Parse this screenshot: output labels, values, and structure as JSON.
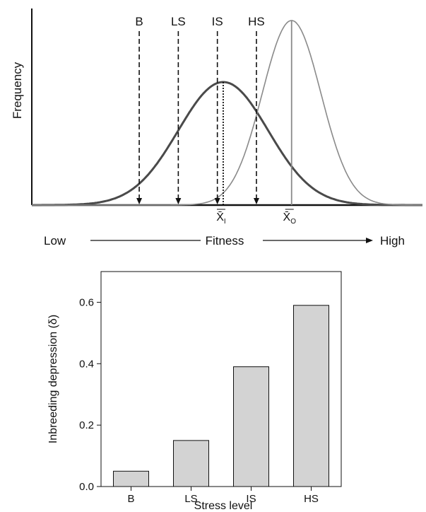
{
  "chart_data": [
    {
      "type": "line",
      "ylabel": "Frequency",
      "xlabel": "Fitness",
      "xlabel_low": "Low",
      "xlabel_high": "High",
      "series": [
        {
          "label": "X̄I",
          "mean": 0.49,
          "sd": 0.115,
          "peak": 0.6,
          "color": "#4a4a4a"
        },
        {
          "label": "X̄O",
          "mean": 0.665,
          "sd": 0.075,
          "peak": 0.9,
          "color": "#8a8a8a"
        }
      ],
      "threshold_markers": [
        "B",
        "LS",
        "IS",
        "HS"
      ],
      "threshold_positions": [
        0.275,
        0.375,
        0.475,
        0.575
      ]
    },
    {
      "type": "bar",
      "categories": [
        "B",
        "LS",
        "IS",
        "HS"
      ],
      "values": [
        0.05,
        0.15,
        0.39,
        0.59
      ],
      "xlabel": "Stress level",
      "ylabel": "Inbreeding depression (δ)",
      "ylim": [
        0,
        0.7
      ],
      "yticks": [
        "0.0",
        "0.2",
        "0.4",
        "0.6"
      ],
      "bar_color": "#d3d3d3"
    }
  ]
}
